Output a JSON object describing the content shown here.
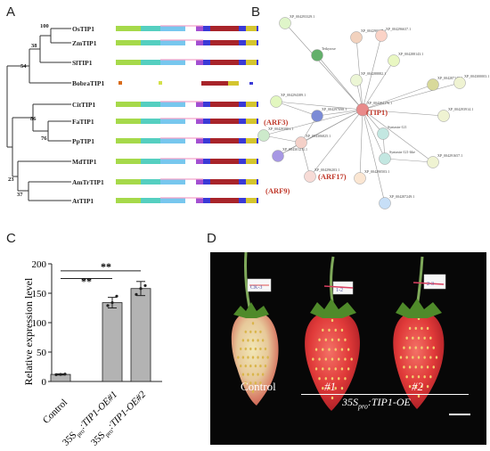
{
  "panels": {
    "a": "A",
    "b": "B",
    "c": "C",
    "d": "D"
  },
  "panel_a": {
    "taxa": [
      "OsTIP1",
      "ZmTIP1",
      "SlTIP1",
      "BobraTIP1",
      "CitTIP1",
      "FaTIP1",
      "PpTIP1",
      "MdTIP1",
      "AmTrTIP1",
      "AtTIP1"
    ],
    "bootstrap": [
      "100",
      "38",
      "54",
      "86",
      "76",
      "23",
      "37"
    ]
  },
  "panel_b": {
    "nodes": [
      "XP_004293329.1",
      "XP_004290347.1",
      "XP_004296637.1",
      "Tetkyrose",
      "XP_004288143.1",
      "XP_004288882.1",
      "XP_004294389.1",
      "XP_004304176.1",
      "XP_004287146.1",
      "XP_004300003.1",
      "XP_004297098.1",
      "XP_004293914.1",
      "XP_004293901.1",
      "XP_004306825.1",
      "XP_004301211.1",
      "Syntaxin-121",
      "Syntaxin-121-like",
      "XP_004291657.1",
      "XP_004296203.1",
      "XP_004290503.1",
      "XP_004287249.1"
    ],
    "labels": {
      "tip1": "(TIP1)",
      "arf3": "(ARF3)",
      "arf9": "(ARF9)",
      "arf17": "(ARF17)"
    }
  },
  "chart_data": {
    "type": "bar",
    "categories": [
      "Control",
      "35S pro:TIP1-OE#1",
      "35S pro:TIP1-OE#2"
    ],
    "values": [
      12,
      134,
      158
    ],
    "errors": [
      1,
      9,
      12
    ],
    "points": [
      [
        11.5,
        12,
        12.5
      ],
      [
        129,
        134,
        145
      ],
      [
        148,
        158,
        163
      ]
    ],
    "significance": [
      "**",
      "**"
    ],
    "ylabel": "Relative expression level",
    "yticks": [
      0,
      50,
      100,
      150,
      200
    ],
    "ylim": [
      0,
      200
    ],
    "colors": {
      "bar": "#b3b3b3",
      "edge": "#222222"
    }
  },
  "panel_d": {
    "labels": {
      "control": "Control",
      "oe1": "#1",
      "oe2": "#2"
    },
    "genotype": {
      "prefix": "35S",
      "sub": "pro",
      "suffix": ":TIP1-OE"
    },
    "tag_texts": [
      "CK-3",
      "1-2",
      "2-3"
    ],
    "background": "#070707"
  }
}
